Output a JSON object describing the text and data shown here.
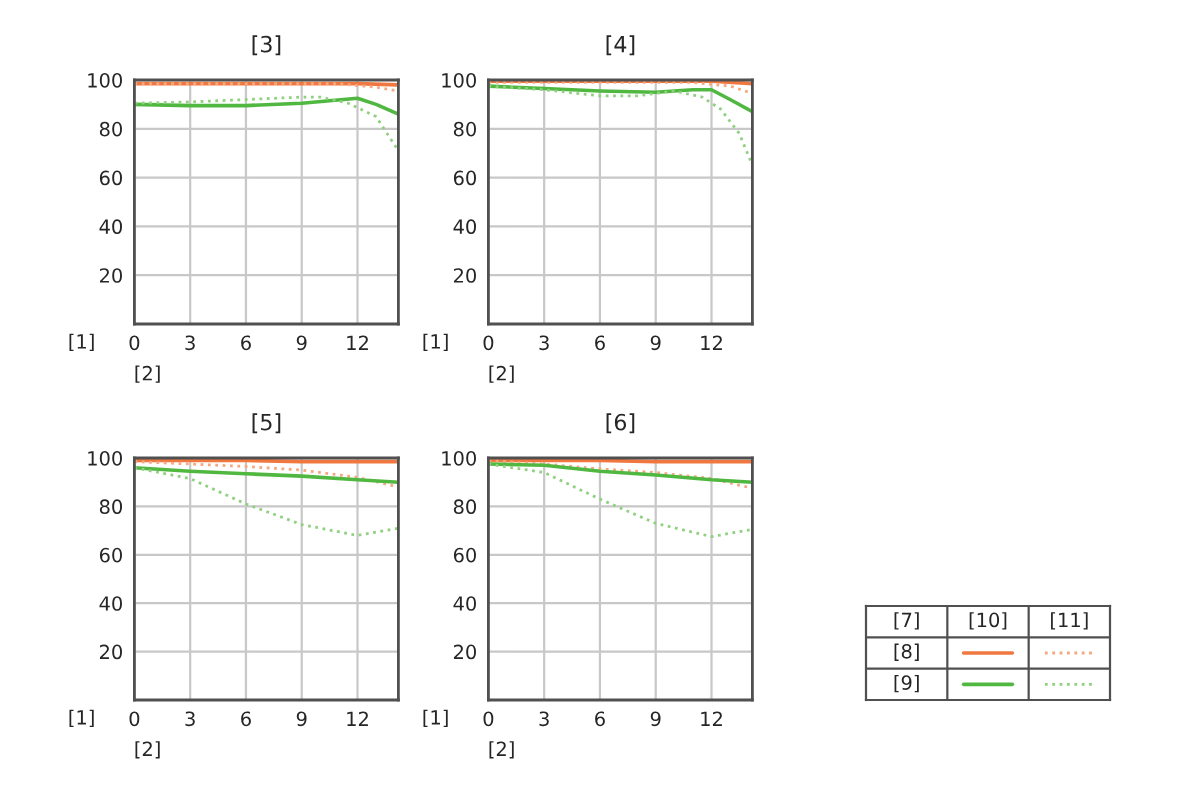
{
  "chart_data": [
    {
      "type": "line",
      "title": "[3]",
      "xlabel": "[2]",
      "ylabel": "[1]",
      "xlim": [
        0,
        14.2
      ],
      "xticks": [
        0,
        3,
        6,
        9,
        12
      ],
      "ylim": [
        0,
        100
      ],
      "yticks": [
        20,
        40,
        60,
        80,
        100
      ],
      "grid": true,
      "series": [
        {
          "color": "#f07840",
          "line_style": "solid",
          "x": [
            0,
            3,
            6,
            9,
            12,
            14.2
          ],
          "values": [
            98.5,
            98.5,
            98.5,
            98.5,
            98.5,
            98
          ]
        },
        {
          "color": "#f5a880",
          "line_style": "dotted",
          "x": [
            0,
            3,
            6,
            9,
            11,
            13,
            14.2
          ],
          "values": [
            98.5,
            98.5,
            98.5,
            98.5,
            98.5,
            97,
            95.5
          ]
        },
        {
          "color": "#50b840",
          "line_style": "solid",
          "x": [
            0,
            3,
            6,
            9,
            12,
            13,
            14.2
          ],
          "values": [
            90,
            89.5,
            89.5,
            90.5,
            92.5,
            90,
            86
          ]
        },
        {
          "color": "#90d080",
          "line_style": "dotted",
          "x": [
            0,
            3,
            6,
            9,
            10,
            11.5,
            13,
            14.2
          ],
          "values": [
            90.5,
            91,
            92,
            93,
            93,
            90.5,
            85,
            71
          ]
        }
      ]
    },
    {
      "type": "line",
      "title": "[4]",
      "xlabel": "[2]",
      "ylabel": "[1]",
      "xlim": [
        0,
        14.2
      ],
      "xticks": [
        0,
        3,
        6,
        9,
        12
      ],
      "ylim": [
        0,
        100
      ],
      "yticks": [
        20,
        40,
        60,
        80,
        100
      ],
      "grid": true,
      "series": [
        {
          "color": "#f07840",
          "line_style": "solid",
          "x": [
            0,
            3,
            6,
            9,
            12,
            14.2
          ],
          "values": [
            99.5,
            99.5,
            99.5,
            99.5,
            99.5,
            98.5
          ]
        },
        {
          "color": "#f5a880",
          "line_style": "dotted",
          "x": [
            0,
            3,
            6,
            9,
            11,
            13,
            14.2
          ],
          "values": [
            99,
            99,
            99,
            99,
            99,
            97.5,
            94.5
          ]
        },
        {
          "color": "#50b840",
          "line_style": "solid",
          "x": [
            0,
            3,
            6,
            9,
            11,
            12,
            13,
            14.2
          ],
          "values": [
            97.5,
            96.5,
            95.5,
            95,
            96,
            96,
            92,
            87
          ]
        },
        {
          "color": "#90d080",
          "line_style": "dotted",
          "x": [
            0,
            3,
            6,
            8,
            10,
            11.5,
            12.5,
            13.5,
            14.2
          ],
          "values": [
            97.5,
            96,
            93.5,
            93.5,
            95.5,
            93,
            88,
            78,
            65
          ]
        }
      ]
    },
    {
      "type": "line",
      "title": "[5]",
      "xlabel": "[2]",
      "ylabel": "[1]",
      "xlim": [
        0,
        14.2
      ],
      "xticks": [
        0,
        3,
        6,
        9,
        12
      ],
      "ylim": [
        0,
        100
      ],
      "yticks": [
        20,
        40,
        60,
        80,
        100
      ],
      "grid": true,
      "series": [
        {
          "color": "#f07840",
          "line_style": "solid",
          "x": [
            0,
            3,
            6,
            9,
            12,
            14.2
          ],
          "values": [
            99,
            99,
            99,
            98.5,
            98.5,
            98.5
          ]
        },
        {
          "color": "#f5a880",
          "line_style": "dotted",
          "x": [
            0,
            3,
            6,
            9,
            12,
            14.2
          ],
          "values": [
            98.5,
            97.5,
            96.5,
            95,
            92,
            88
          ]
        },
        {
          "color": "#50b840",
          "line_style": "solid",
          "x": [
            0,
            3,
            6,
            9,
            12,
            14.2
          ],
          "values": [
            96,
            94.5,
            93.5,
            92.5,
            91,
            90
          ]
        },
        {
          "color": "#90d080",
          "line_style": "dotted",
          "x": [
            0,
            3,
            6,
            9,
            12,
            14.2
          ],
          "values": [
            96,
            91.5,
            81,
            72.5,
            68,
            71
          ]
        }
      ]
    },
    {
      "type": "line",
      "title": "[6]",
      "xlabel": "[2]",
      "ylabel": "[1]",
      "xlim": [
        0,
        14.2
      ],
      "xticks": [
        0,
        3,
        6,
        9,
        12
      ],
      "ylim": [
        0,
        100
      ],
      "yticks": [
        20,
        40,
        60,
        80,
        100
      ],
      "grid": true,
      "series": [
        {
          "color": "#f07840",
          "line_style": "solid",
          "x": [
            0,
            3,
            6,
            9,
            12,
            14.2
          ],
          "values": [
            99,
            99,
            99,
            98.5,
            98.5,
            98.5
          ]
        },
        {
          "color": "#f5a880",
          "line_style": "dotted",
          "x": [
            0,
            3,
            6,
            9,
            12,
            14.2
          ],
          "values": [
            99,
            97.5,
            95.5,
            94,
            91.5,
            87.5
          ]
        },
        {
          "color": "#50b840",
          "line_style": "solid",
          "x": [
            0,
            3,
            6,
            9,
            12,
            14.2
          ],
          "values": [
            97.5,
            97,
            94.5,
            93,
            91,
            90
          ]
        },
        {
          "color": "#90d080",
          "line_style": "dotted",
          "x": [
            0,
            3,
            6,
            9,
            12,
            14.2
          ],
          "values": [
            97.5,
            94,
            83,
            73,
            67.5,
            70.5
          ]
        }
      ]
    },
    {
      "type": "other",
      "annotations": [
        "[7]",
        "[10]",
        "[11]",
        "[8]",
        "[9]"
      ]
    }
  ]
}
